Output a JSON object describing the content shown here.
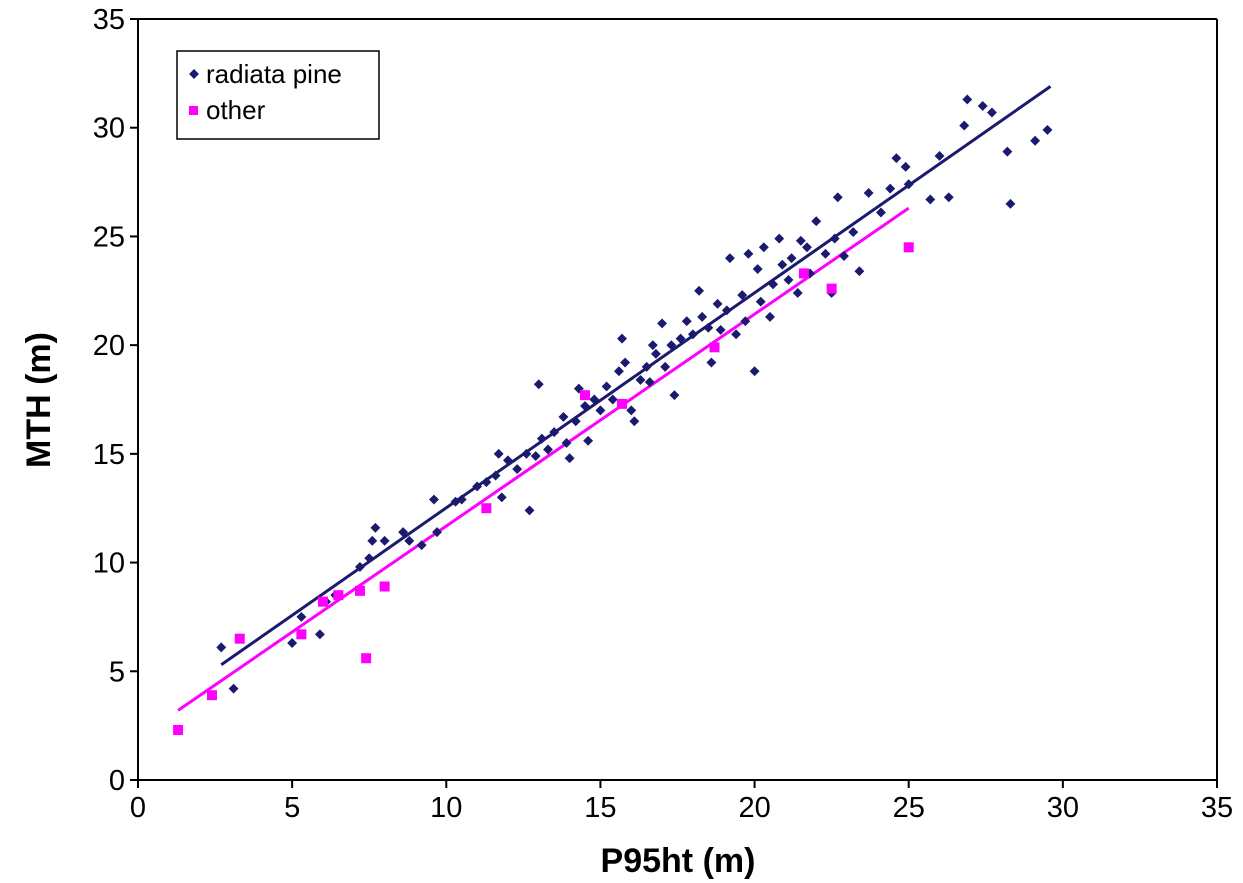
{
  "chart_data": {
    "type": "scatter",
    "title": "",
    "xlabel": "P95ht (m)",
    "ylabel": "MTH (m)",
    "xlim": [
      0,
      35
    ],
    "ylim": [
      0,
      35
    ],
    "x_ticks": [
      0,
      5,
      10,
      15,
      20,
      25,
      30,
      35
    ],
    "y_ticks": [
      0,
      5,
      10,
      15,
      20,
      25,
      30,
      35
    ],
    "grid": false,
    "legend_position": "top-left",
    "series": [
      {
        "name": "radiata pine",
        "color": "#1a1a6e",
        "marker": "diamond",
        "points": [
          [
            2.7,
            6.1
          ],
          [
            3.1,
            4.2
          ],
          [
            5.0,
            6.3
          ],
          [
            5.3,
            7.5
          ],
          [
            5.9,
            6.7
          ],
          [
            6.1,
            8.2
          ],
          [
            6.4,
            8.5
          ],
          [
            7.2,
            9.8
          ],
          [
            7.5,
            10.2
          ],
          [
            7.6,
            11.0
          ],
          [
            7.7,
            11.6
          ],
          [
            8.0,
            11.0
          ],
          [
            8.6,
            11.4
          ],
          [
            8.8,
            11.0
          ],
          [
            9.2,
            10.8
          ],
          [
            9.6,
            12.9
          ],
          [
            9.7,
            11.4
          ],
          [
            10.3,
            12.8
          ],
          [
            10.5,
            12.9
          ],
          [
            11.0,
            13.5
          ],
          [
            11.3,
            13.7
          ],
          [
            11.6,
            14.0
          ],
          [
            11.7,
            15.0
          ],
          [
            11.8,
            13.0
          ],
          [
            12.0,
            14.7
          ],
          [
            12.3,
            14.3
          ],
          [
            12.6,
            15.0
          ],
          [
            12.7,
            12.4
          ],
          [
            12.9,
            14.9
          ],
          [
            13.0,
            18.2
          ],
          [
            13.1,
            15.7
          ],
          [
            13.3,
            15.2
          ],
          [
            13.5,
            16.0
          ],
          [
            13.8,
            16.7
          ],
          [
            13.9,
            15.5
          ],
          [
            14.0,
            14.8
          ],
          [
            14.2,
            16.5
          ],
          [
            14.3,
            18.0
          ],
          [
            14.5,
            17.2
          ],
          [
            14.6,
            15.6
          ],
          [
            14.8,
            17.5
          ],
          [
            15.0,
            17.0
          ],
          [
            15.2,
            18.1
          ],
          [
            15.4,
            17.5
          ],
          [
            15.6,
            18.8
          ],
          [
            15.7,
            20.3
          ],
          [
            15.8,
            19.2
          ],
          [
            16.0,
            17.0
          ],
          [
            16.1,
            16.5
          ],
          [
            16.3,
            18.4
          ],
          [
            16.5,
            19.0
          ],
          [
            16.6,
            18.3
          ],
          [
            16.7,
            20.0
          ],
          [
            16.8,
            19.6
          ],
          [
            17.0,
            21.0
          ],
          [
            17.1,
            19.0
          ],
          [
            17.3,
            20.0
          ],
          [
            17.4,
            17.7
          ],
          [
            17.6,
            20.3
          ],
          [
            17.8,
            21.1
          ],
          [
            18.0,
            20.5
          ],
          [
            18.2,
            22.5
          ],
          [
            18.3,
            21.3
          ],
          [
            18.5,
            20.8
          ],
          [
            18.6,
            19.2
          ],
          [
            18.8,
            21.9
          ],
          [
            18.9,
            20.7
          ],
          [
            19.1,
            21.6
          ],
          [
            19.2,
            24.0
          ],
          [
            19.4,
            20.5
          ],
          [
            19.6,
            22.3
          ],
          [
            19.7,
            21.1
          ],
          [
            19.8,
            24.2
          ],
          [
            20.0,
            18.8
          ],
          [
            20.1,
            23.5
          ],
          [
            20.2,
            22.0
          ],
          [
            20.3,
            24.5
          ],
          [
            20.5,
            21.3
          ],
          [
            20.6,
            22.8
          ],
          [
            20.8,
            24.9
          ],
          [
            20.9,
            23.7
          ],
          [
            21.1,
            23.0
          ],
          [
            21.2,
            24.0
          ],
          [
            21.4,
            22.4
          ],
          [
            21.5,
            24.8
          ],
          [
            21.7,
            24.5
          ],
          [
            21.8,
            23.3
          ],
          [
            22.0,
            25.7
          ],
          [
            22.3,
            24.2
          ],
          [
            22.5,
            22.4
          ],
          [
            22.6,
            24.9
          ],
          [
            22.7,
            26.8
          ],
          [
            22.9,
            24.1
          ],
          [
            23.2,
            25.2
          ],
          [
            23.4,
            23.4
          ],
          [
            23.7,
            27.0
          ],
          [
            24.1,
            26.1
          ],
          [
            24.4,
            27.2
          ],
          [
            24.6,
            28.6
          ],
          [
            24.9,
            28.2
          ],
          [
            25.0,
            27.4
          ],
          [
            25.7,
            26.7
          ],
          [
            26.0,
            28.7
          ],
          [
            26.3,
            26.8
          ],
          [
            26.8,
            30.1
          ],
          [
            26.9,
            31.3
          ],
          [
            27.4,
            31.0
          ],
          [
            27.7,
            30.7
          ],
          [
            28.2,
            28.9
          ],
          [
            28.3,
            26.5
          ],
          [
            29.1,
            29.4
          ],
          [
            29.5,
            29.9
          ]
        ],
        "trend": [
          [
            2.7,
            5.3
          ],
          [
            29.6,
            31.9
          ]
        ]
      },
      {
        "name": "other",
        "color": "#ff00ff",
        "marker": "square",
        "points": [
          [
            1.3,
            2.3
          ],
          [
            2.4,
            3.9
          ],
          [
            3.3,
            6.5
          ],
          [
            5.3,
            6.7
          ],
          [
            6.0,
            8.2
          ],
          [
            6.5,
            8.5
          ],
          [
            7.2,
            8.7
          ],
          [
            7.4,
            5.6
          ],
          [
            8.0,
            8.9
          ],
          [
            11.3,
            12.5
          ],
          [
            14.5,
            17.7
          ],
          [
            15.7,
            17.3
          ],
          [
            18.7,
            19.9
          ],
          [
            21.6,
            23.3
          ],
          [
            22.5,
            22.6
          ],
          [
            25.0,
            24.5
          ]
        ],
        "trend": [
          [
            1.3,
            3.2
          ],
          [
            25.0,
            26.3
          ]
        ]
      }
    ]
  }
}
